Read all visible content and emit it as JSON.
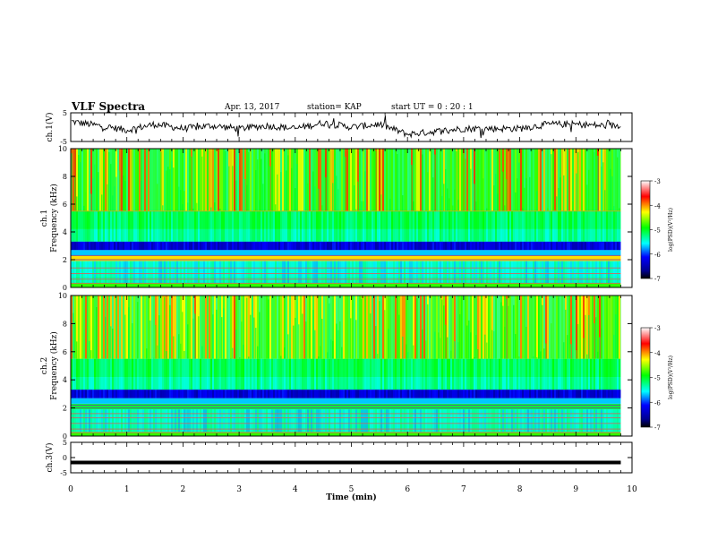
{
  "header": {
    "title": "VLF Spectra",
    "date": "Apr. 13, 2017",
    "station": "station= KAP",
    "start": "start  UT =  0 : 20 : 1"
  },
  "chart_data": [
    {
      "type": "line",
      "ylabel": "ch.1(V)",
      "ylim": [
        -5,
        5
      ],
      "yticks": [
        "5",
        "-5"
      ],
      "xlim": [
        0,
        10
      ],
      "series": [
        {
          "x": [
            0,
            0.5,
            1,
            1.5,
            2,
            2.5,
            3,
            3.5,
            4,
            4.5,
            5,
            5.5,
            6,
            6.5,
            7,
            7.5,
            8,
            8.5,
            9,
            9.5,
            9.8
          ],
          "values": [
            2,
            0.5,
            -1,
            1,
            -0.5,
            0.5,
            -0.5,
            0.5,
            -0.5,
            1.5,
            0,
            1,
            -2.5,
            -1.5,
            -0.5,
            -0.5,
            -0.5,
            1,
            1,
            0.5,
            0.5
          ]
        }
      ]
    },
    {
      "type": "heatmap",
      "ylabel": "ch.1\nFrequency (kHz)",
      "ylim": [
        0,
        10
      ],
      "yticks": [
        "0",
        "2",
        "4",
        "6",
        "8",
        "10"
      ],
      "xlim": [
        0,
        10
      ],
      "colorbar": {
        "label": "log(PSD)(V²/Hz)",
        "range": [
          -7,
          -3
        ],
        "ticks": [
          "-3",
          "-4",
          "-5",
          "-6",
          "-7"
        ]
      }
    },
    {
      "type": "heatmap",
      "ylabel": "ch.2\nFrequency (kHz)",
      "ylim": [
        0,
        10
      ],
      "yticks": [
        "0",
        "2",
        "4",
        "6",
        "8",
        "10"
      ],
      "xlim": [
        0,
        10
      ],
      "colorbar": {
        "label": "log(PSD)(V²/Hz)",
        "range": [
          -7,
          -3
        ],
        "ticks": [
          "-3",
          "-4",
          "-5",
          "-6",
          "-7"
        ]
      }
    },
    {
      "type": "line",
      "ylabel": "ch.3(V)",
      "ylim": [
        -5,
        5
      ],
      "yticks": [
        "5",
        "0",
        "-5"
      ],
      "xlim": [
        0,
        10
      ],
      "xlabel": "Time (min)",
      "xticks": [
        "0",
        "1",
        "2",
        "3",
        "4",
        "5",
        "6",
        "7",
        "8",
        "9",
        "10"
      ],
      "series": [
        {
          "x": [
            0,
            9.8
          ],
          "values": [
            -1.6,
            -1.6
          ]
        }
      ]
    }
  ]
}
